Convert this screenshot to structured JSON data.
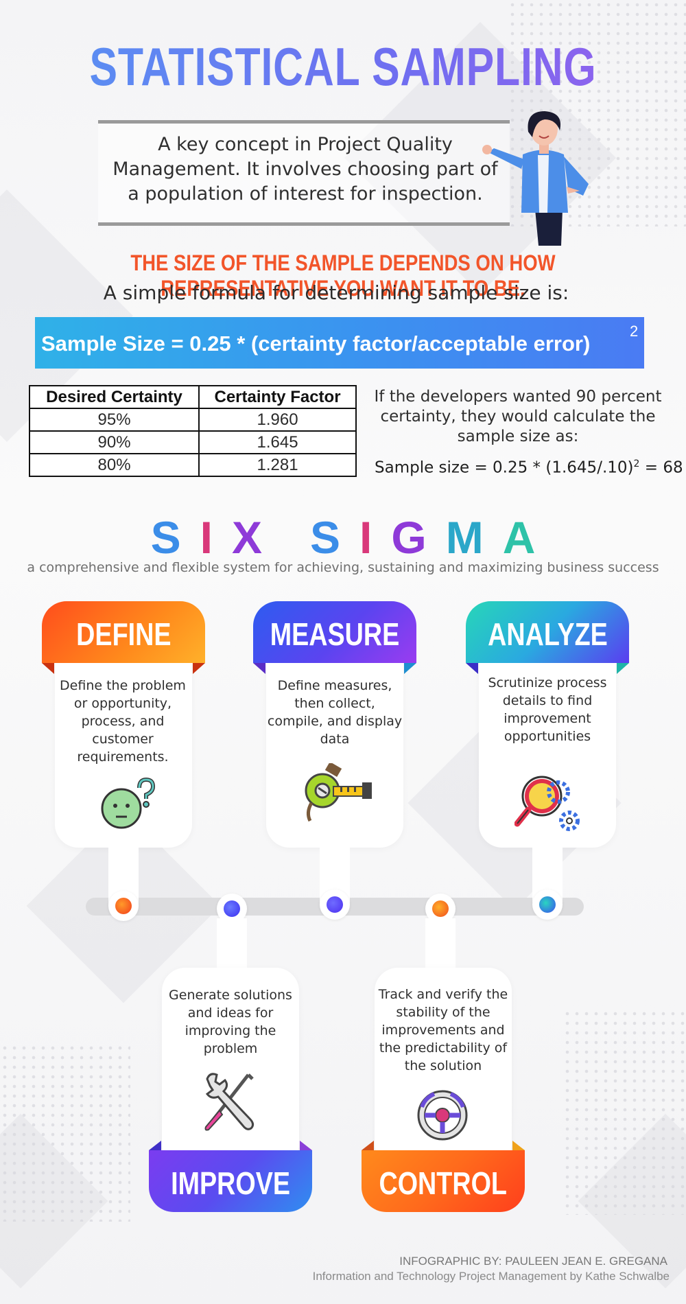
{
  "title": "STATISTICAL SAMPLING",
  "intro": "A key concept in Project Quality Management. It involves choosing part of a population of interest for inspection.",
  "headline": "THE SIZE OF THE SAMPLE DEPENDS ON HOW REPRESENTATIVE YOU WANT IT TO BE.",
  "formula_intro": "A simple formula for determining sample size is:",
  "formula": "Sample Size = 0.25 * (certainty factor/acceptable error)",
  "formula_exponent": "2",
  "table": {
    "headers": [
      "Desired Certainty",
      "Certainty Factor"
    ],
    "rows": [
      [
        "95%",
        "1.960"
      ],
      [
        "90%",
        "1.645"
      ],
      [
        "80%",
        "1.281"
      ]
    ]
  },
  "example_text": "If the developers wanted 90 percent certainty,  they would calculate the sample size as:",
  "example_calc": {
    "left": "Sample size = 0.25 * (1.645/.10)",
    "exponent": "2",
    "right": " = 68"
  },
  "six_sigma": {
    "word1": [
      "S",
      "I",
      "X"
    ],
    "word2": [
      "S",
      "I",
      "G",
      "M",
      "A"
    ],
    "subtitle": "a comprehensive and flexible system for achieving, sustaining and  maximizing business success"
  },
  "steps": {
    "define": {
      "title": "DEFINE",
      "text": "Define the problem or opportunity, process, and customer requirements.",
      "icon": "confused-face-icon",
      "color": "#ff6a1a"
    },
    "measure": {
      "title": "MEASURE",
      "text": "Define measures, then collect, compile, and display data",
      "icon": "tape-measure-icon",
      "color": "#5c4ff0"
    },
    "analyze": {
      "title": "ANALYZE",
      "text": "Scrutinize process details to find improvement opportunities",
      "icon": "magnifier-gears-icon",
      "color": "#2fc4c0"
    },
    "improve": {
      "title": "IMPROVE",
      "text": "Generate solutions and ideas for improving the problem",
      "icon": "wrench-screwdriver-icon",
      "color": "#7d49f0"
    },
    "control": {
      "title": "CONTROL",
      "text": "Track and verify the stability of the improvements and the predictability of the solution",
      "icon": "steering-wheel-icon",
      "color": "#ff7a12"
    }
  },
  "credits": {
    "author": "INFOGRAPHIC BY: PAULEEN JEAN E. GREGANA",
    "source": "Information and Technology Project Management by Kathe Schwalbe"
  }
}
